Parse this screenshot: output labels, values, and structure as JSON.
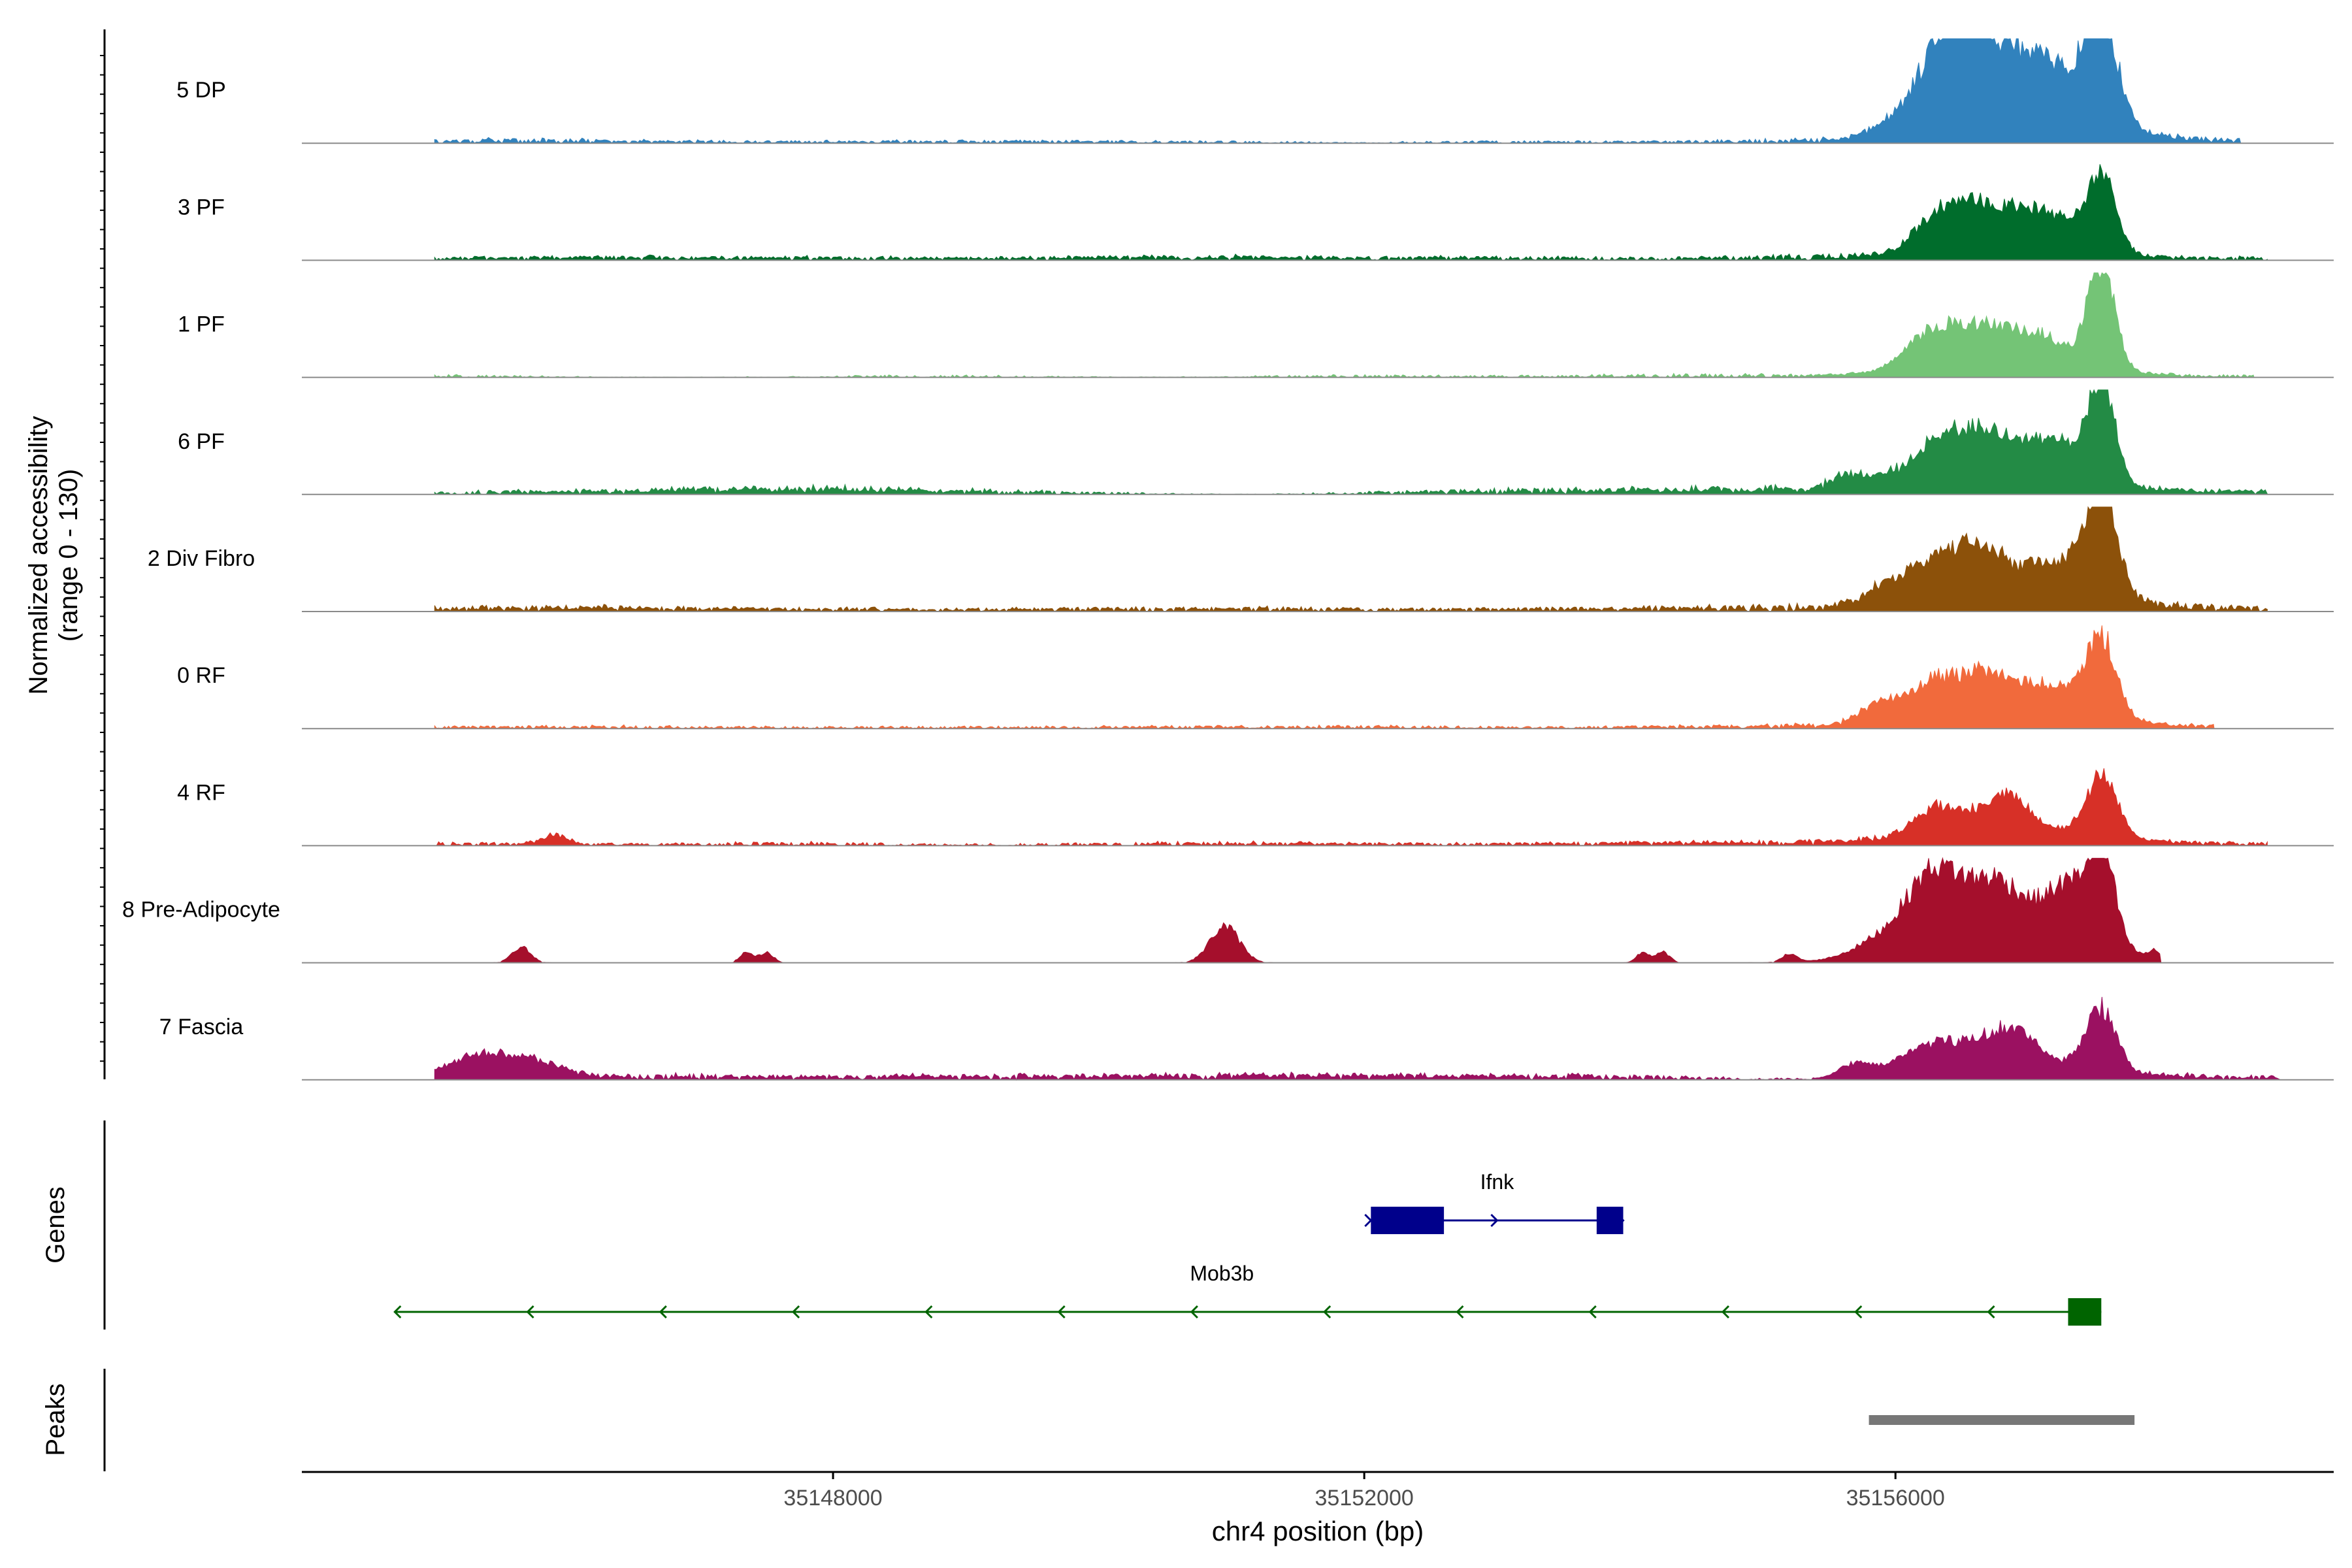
{
  "chart_data": {
    "type": "area",
    "title": "",
    "region": "chr4",
    "xlabel": "chr4 position (bp)",
    "ylabel_line1": "Normalized accessibility",
    "ylabel_line2": "(range 0 - 130)",
    "yrange": [
      0,
      130
    ],
    "xlim": [
      35144000,
      35159300
    ],
    "x_ticks": [
      35148000,
      35152000,
      35156000
    ],
    "x_tick_labels": [
      "35148000",
      "35152000",
      "35156000"
    ],
    "tracks": [
      {
        "name": "5 DP",
        "color": "#3182BD",
        "peaks": [
          [
            35156300,
            30,
            300
          ],
          [
            35156500,
            72,
            200
          ],
          [
            35156900,
            30,
            200
          ],
          [
            35157200,
            30,
            200
          ],
          [
            35157550,
            80,
            120
          ],
          [
            35157100,
            22,
            500
          ]
        ],
        "noise": [
          [
            35145300,
            4
          ],
          [
            35147200,
            2
          ],
          [
            35148900,
            2
          ],
          [
            35150500,
            2
          ],
          [
            35153200,
            2
          ],
          [
            35155600,
            4
          ],
          [
            35158300,
            4
          ]
        ],
        "noiseEnd": 35158600
      },
      {
        "name": "3 PF",
        "color": "#006D2C",
        "peaks": [
          [
            35156400,
            30,
            220
          ],
          [
            35156800,
            22,
            220
          ],
          [
            35157200,
            20,
            200
          ],
          [
            35157550,
            55,
            110
          ],
          [
            35156900,
            12,
            500
          ]
        ],
        "noise": [
          [
            35145000,
            2
          ],
          [
            35146300,
            3
          ],
          [
            35148000,
            3
          ],
          [
            35150000,
            3
          ],
          [
            35151200,
            3
          ],
          [
            35153000,
            3
          ],
          [
            35155500,
            5
          ],
          [
            35158400,
            3
          ]
        ],
        "noiseEnd": 35158800
      },
      {
        "name": "1 PF",
        "color": "#74C476",
        "peaks": [
          [
            35156300,
            28,
            200
          ],
          [
            35156700,
            22,
            200
          ],
          [
            35157100,
            20,
            200
          ],
          [
            35157550,
            80,
            100
          ],
          [
            35156800,
            12,
            600
          ]
        ],
        "noise": [
          [
            35145000,
            2
          ],
          [
            35148700,
            2
          ],
          [
            35152000,
            2
          ],
          [
            35154500,
            3
          ],
          [
            35158500,
            2
          ]
        ],
        "noiseEnd": 35158700
      },
      {
        "name": "6 PF",
        "color": "#238B45",
        "peaks": [
          [
            35156350,
            35,
            230
          ],
          [
            35156750,
            26,
            200
          ],
          [
            35157200,
            28,
            200
          ],
          [
            35157550,
            75,
            100
          ],
          [
            35155700,
            12,
            150
          ],
          [
            35156900,
            12,
            600
          ]
        ],
        "noise": [
          [
            35145600,
            3
          ],
          [
            35147300,
            5
          ],
          [
            35148000,
            3
          ],
          [
            35149200,
            3
          ],
          [
            35153000,
            4
          ],
          [
            35154200,
            3
          ],
          [
            35155400,
            6
          ],
          [
            35158400,
            4
          ]
        ],
        "noiseEnd": 35158800
      },
      {
        "name": "2 Div Fibro",
        "color": "#8C510A",
        "peaks": [
          [
            35156300,
            30,
            220
          ],
          [
            35156650,
            28,
            180
          ],
          [
            35157200,
            24,
            250
          ],
          [
            35157550,
            78,
            120
          ],
          [
            35156900,
            12,
            600
          ],
          [
            35155900,
            10,
            150
          ]
        ],
        "noise": [
          [
            35145300,
            4
          ],
          [
            35146500,
            3
          ],
          [
            35148000,
            3
          ],
          [
            35150000,
            3
          ],
          [
            35151500,
            3
          ],
          [
            35153500,
            3
          ],
          [
            35155400,
            6
          ],
          [
            35158000,
            6
          ]
        ],
        "noiseEnd": 35158800
      },
      {
        "name": "0 RF",
        "color": "#F16A3C",
        "peaks": [
          [
            35156300,
            28,
            250
          ],
          [
            35156750,
            24,
            200
          ],
          [
            35157200,
            20,
            200
          ],
          [
            35157550,
            60,
            110
          ],
          [
            35156900,
            12,
            600
          ],
          [
            35155850,
            10,
            120
          ]
        ],
        "noise": [
          [
            35145000,
            2
          ],
          [
            35146500,
            2
          ],
          [
            35148500,
            2
          ],
          [
            35150500,
            2
          ],
          [
            35152000,
            2
          ],
          [
            35154000,
            2
          ],
          [
            35155600,
            4
          ],
          [
            35158000,
            3
          ]
        ],
        "noiseEnd": 35158400
      },
      {
        "name": "4 RF",
        "color": "#D73027",
        "peaks": [
          [
            35156350,
            22,
            200
          ],
          [
            35156850,
            28,
            150
          ],
          [
            35157550,
            45,
            120
          ],
          [
            35156900,
            12,
            600
          ],
          [
            35145900,
            7,
            90
          ]
        ],
        "noise": [
          [
            35145300,
            3
          ],
          [
            35147700,
            3
          ],
          [
            35150500,
            3
          ],
          [
            35152000,
            2
          ],
          [
            35154000,
            3
          ],
          [
            35155500,
            4
          ],
          [
            35158500,
            3
          ]
        ],
        "noiseEnd": 35158800
      },
      {
        "name": "8 Pre-Adipocyte",
        "color": "#A50F2C",
        "peaks": [
          [
            35156300,
            48,
            180
          ],
          [
            35156750,
            42,
            220
          ],
          [
            35157300,
            40,
            160
          ],
          [
            35157550,
            70,
            100
          ],
          [
            35156000,
            18,
            250
          ],
          [
            35156900,
            22,
            600
          ],
          [
            35150950,
            28,
            110
          ],
          [
            35145650,
            12,
            70
          ],
          [
            35147350,
            8,
            50
          ],
          [
            35147500,
            8,
            50
          ],
          [
            35154100,
            8,
            50
          ],
          [
            35154250,
            8,
            50
          ],
          [
            35155200,
            6,
            60
          ],
          [
            35157950,
            5,
            40
          ]
        ],
        "noise": [],
        "noiseEnd": 35158000
      },
      {
        "name": "7 Fascia",
        "color": "#9B1161",
        "peaks": [
          [
            35145300,
            15,
            250
          ],
          [
            35145700,
            12,
            250
          ],
          [
            35156300,
            20,
            250
          ],
          [
            35156850,
            25,
            180
          ],
          [
            35157550,
            45,
            110
          ],
          [
            35156900,
            14,
            600
          ],
          [
            35155700,
            10,
            120
          ]
        ],
        "noise": [
          [
            35146500,
            4
          ],
          [
            35148000,
            3
          ],
          [
            35149500,
            4
          ],
          [
            35151000,
            4
          ],
          [
            35152300,
            4
          ],
          [
            35153800,
            4
          ],
          [
            35158400,
            4
          ]
        ],
        "noiseEnd": 35158900
      }
    ],
    "genes_label": "Genes",
    "genes": [
      {
        "name": "Ifnk",
        "strand": "+",
        "start": 35152050,
        "end": 35153950,
        "color": "#00008B",
        "exons": [
          [
            35152050,
            35152600
          ],
          [
            35153750,
            35153950
          ]
        ],
        "arrows": [
          35152050,
          35153000,
          35153950
        ]
      },
      {
        "name": "Mob3b",
        "strand": "-",
        "start": 35144700,
        "end": 35157550,
        "color": "#006400",
        "exons": [
          [
            35157300,
            35157550
          ]
        ],
        "arrows": [
          35144700,
          35145700,
          35146700,
          35147700,
          35148700,
          35149700,
          35150700,
          35151700,
          35152700,
          35153700,
          35154700,
          35155700,
          35156700
        ]
      }
    ],
    "peaks_label": "Peaks",
    "peak_regions": [
      [
        35155800,
        35157800
      ]
    ],
    "peak_color": "#777777"
  }
}
